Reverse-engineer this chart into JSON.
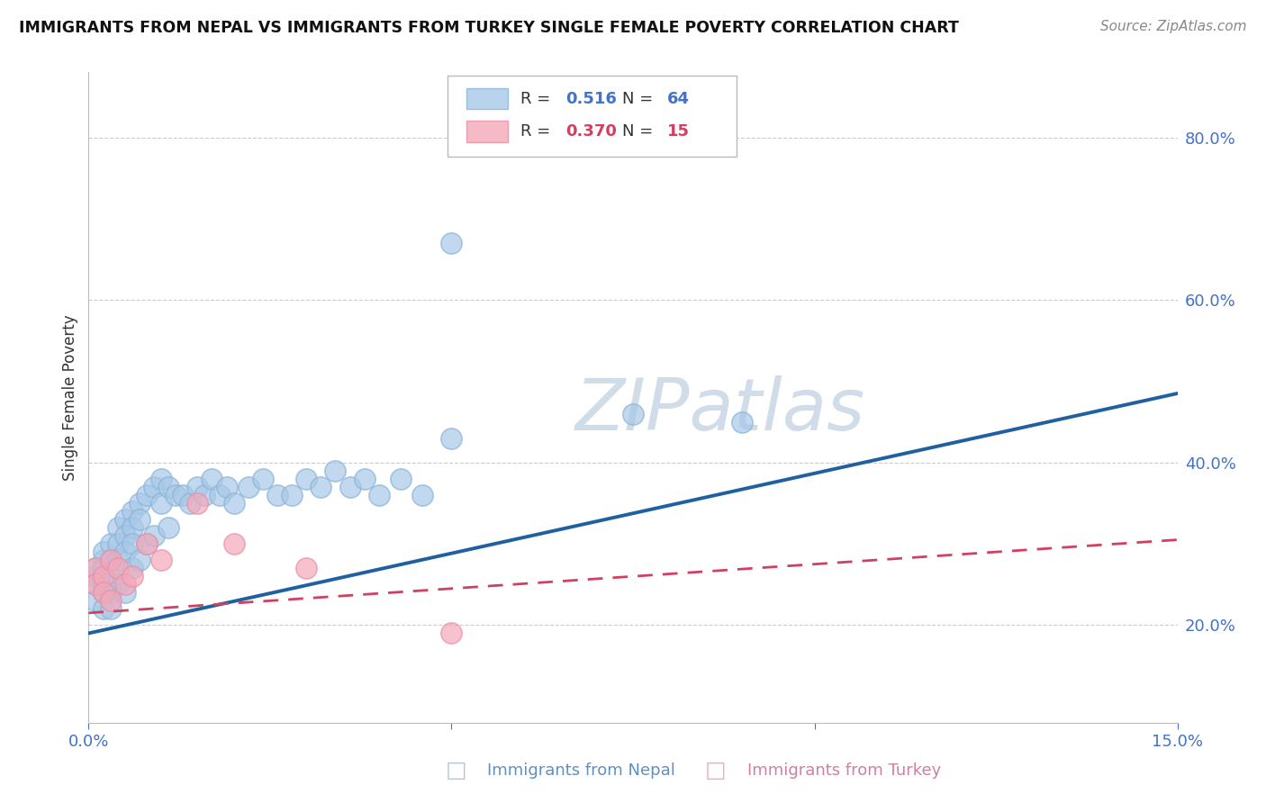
{
  "title": "IMMIGRANTS FROM NEPAL VS IMMIGRANTS FROM TURKEY SINGLE FEMALE POVERTY CORRELATION CHART",
  "source": "Source: ZipAtlas.com",
  "xlabel_blue": "Immigrants from Nepal",
  "xlabel_pink": "Immigrants from Turkey",
  "ylabel": "Single Female Poverty",
  "xlim": [
    0.0,
    0.15
  ],
  "ylim": [
    0.08,
    0.88
  ],
  "yticks_right": [
    0.2,
    0.4,
    0.6,
    0.8
  ],
  "ytick_labels_right": [
    "20.0%",
    "40.0%",
    "60.0%",
    "80.0%"
  ],
  "legend_r_blue": "0.516",
  "legend_n_blue": "64",
  "legend_r_pink": "0.370",
  "legend_n_pink": "15",
  "blue_color": "#a8c8e8",
  "blue_edge_color": "#8ab4d8",
  "pink_color": "#f4a8b8",
  "pink_edge_color": "#e890a8",
  "line_blue_color": "#2060a0",
  "line_pink_color": "#d04060",
  "watermark_color": "#d0dce8",
  "nepal_x": [
    0.001,
    0.001,
    0.001,
    0.001,
    0.002,
    0.002,
    0.002,
    0.002,
    0.002,
    0.002,
    0.002,
    0.003,
    0.003,
    0.003,
    0.003,
    0.003,
    0.004,
    0.004,
    0.004,
    0.004,
    0.005,
    0.005,
    0.005,
    0.005,
    0.006,
    0.006,
    0.006,
    0.006,
    0.007,
    0.007,
    0.007,
    0.008,
    0.008,
    0.009,
    0.009,
    0.01,
    0.01,
    0.011,
    0.011,
    0.012,
    0.013,
    0.014,
    0.015,
    0.016,
    0.017,
    0.018,
    0.019,
    0.02,
    0.022,
    0.024,
    0.026,
    0.028,
    0.03,
    0.032,
    0.034,
    0.036,
    0.038,
    0.04,
    0.043,
    0.046,
    0.05,
    0.075,
    0.09,
    0.05
  ],
  "nepal_y": [
    0.26,
    0.27,
    0.25,
    0.23,
    0.28,
    0.26,
    0.24,
    0.27,
    0.29,
    0.25,
    0.22,
    0.3,
    0.28,
    0.26,
    0.24,
    0.22,
    0.32,
    0.3,
    0.28,
    0.25,
    0.33,
    0.31,
    0.29,
    0.24,
    0.34,
    0.32,
    0.3,
    0.27,
    0.35,
    0.33,
    0.28,
    0.36,
    0.3,
    0.37,
    0.31,
    0.38,
    0.35,
    0.37,
    0.32,
    0.36,
    0.36,
    0.35,
    0.37,
    0.36,
    0.38,
    0.36,
    0.37,
    0.35,
    0.37,
    0.38,
    0.36,
    0.36,
    0.38,
    0.37,
    0.39,
    0.37,
    0.38,
    0.36,
    0.38,
    0.36,
    0.43,
    0.46,
    0.45,
    0.67
  ],
  "turkey_x": [
    0.001,
    0.001,
    0.002,
    0.002,
    0.003,
    0.003,
    0.004,
    0.005,
    0.006,
    0.008,
    0.01,
    0.015,
    0.02,
    0.03,
    0.05
  ],
  "turkey_y": [
    0.27,
    0.25,
    0.26,
    0.24,
    0.28,
    0.23,
    0.27,
    0.25,
    0.26,
    0.3,
    0.28,
    0.35,
    0.3,
    0.27,
    0.19
  ],
  "nepal_line_x0": 0.0,
  "nepal_line_y0": 0.19,
  "nepal_line_x1": 0.15,
  "nepal_line_y1": 0.485,
  "turkey_line_x0": 0.0,
  "turkey_line_y0": 0.215,
  "turkey_line_x1": 0.15,
  "turkey_line_y1": 0.305
}
